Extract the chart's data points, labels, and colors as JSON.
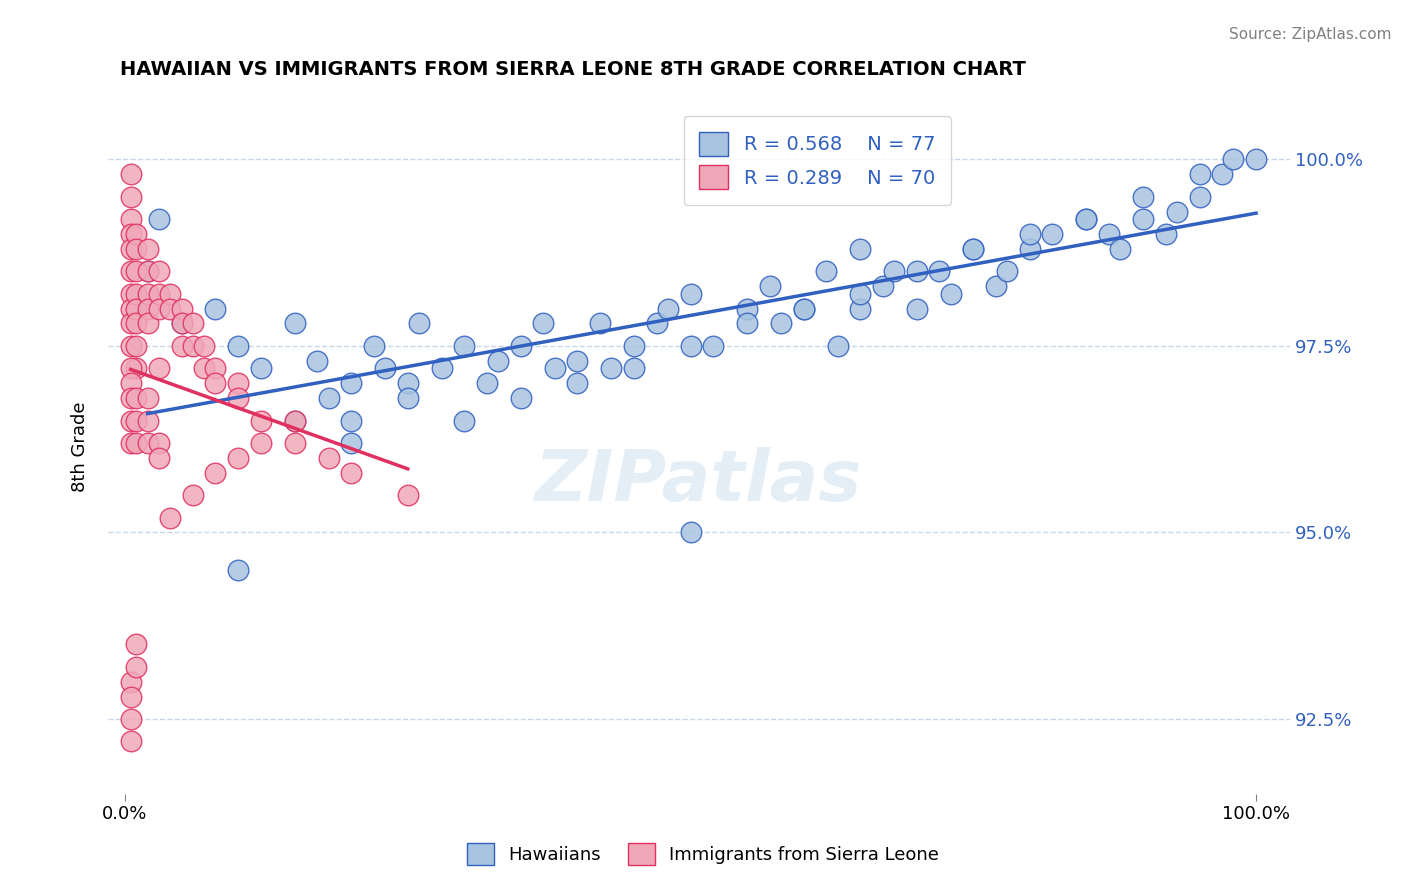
{
  "title": "HAWAIIAN VS IMMIGRANTS FROM SIERRA LEONE 8TH GRADE CORRELATION CHART",
  "source_text": "Source: ZipAtlas.com",
  "xlabel_bottom": "",
  "ylabel": "8th Grade",
  "x_tick_labels": [
    "0.0%",
    "100.0%"
  ],
  "y_tick_labels": [
    "92.5%",
    "95.0%",
    "97.5%",
    "100.0%"
  ],
  "y_min": 91.5,
  "y_max": 100.8,
  "x_min": -1.5,
  "x_max": 103,
  "legend_blue_label": "R = 0.568    N = 77",
  "legend_pink_label": "R = 0.289    N = 70",
  "bottom_legend_blue": "Hawaiians",
  "bottom_legend_pink": "Immigrants from Sierra Leone",
  "blue_color": "#a8c4e0",
  "pink_color": "#f0a8b8",
  "trend_blue_color": "#3060c0",
  "trend_pink_color": "#e03060",
  "watermark_text": "ZIPatlas",
  "blue_scatter_x": [
    2,
    3,
    5,
    8,
    10,
    12,
    15,
    17,
    18,
    20,
    22,
    23,
    25,
    26,
    28,
    30,
    32,
    33,
    35,
    37,
    38,
    40,
    42,
    43,
    45,
    47,
    48,
    50,
    52,
    55,
    57,
    58,
    60,
    62,
    63,
    65,
    67,
    68,
    70,
    72,
    73,
    75,
    77,
    78,
    80,
    82,
    85,
    87,
    88,
    90,
    92,
    93,
    95,
    97,
    98,
    100,
    15,
    20,
    25,
    30,
    35,
    40,
    45,
    50,
    55,
    60,
    65,
    70,
    75,
    80,
    85,
    90,
    95,
    10,
    50,
    65,
    20
  ],
  "blue_scatter_y": [
    98.5,
    99.2,
    97.8,
    98.0,
    97.5,
    97.2,
    97.8,
    97.3,
    96.8,
    97.0,
    97.5,
    97.2,
    97.0,
    97.8,
    97.2,
    97.5,
    97.0,
    97.3,
    97.5,
    97.8,
    97.2,
    97.3,
    97.8,
    97.2,
    97.5,
    97.8,
    98.0,
    98.2,
    97.5,
    98.0,
    98.3,
    97.8,
    98.0,
    98.5,
    97.5,
    98.0,
    98.3,
    98.5,
    98.0,
    98.5,
    98.2,
    98.8,
    98.3,
    98.5,
    98.8,
    99.0,
    99.2,
    99.0,
    98.8,
    99.2,
    99.0,
    99.3,
    99.5,
    99.8,
    100.0,
    100.0,
    96.5,
    96.2,
    96.8,
    96.5,
    96.8,
    97.0,
    97.2,
    97.5,
    97.8,
    98.0,
    98.2,
    98.5,
    98.8,
    99.0,
    99.2,
    99.5,
    99.8,
    94.5,
    95.0,
    98.8,
    96.5
  ],
  "pink_scatter_x": [
    0.5,
    0.5,
    0.5,
    0.5,
    0.5,
    0.5,
    0.5,
    0.5,
    0.5,
    0.5,
    1,
    1,
    1,
    1,
    1,
    1,
    1,
    1,
    2,
    2,
    2,
    2,
    2,
    3,
    3,
    3,
    4,
    4,
    5,
    5,
    5,
    6,
    6,
    7,
    7,
    8,
    8,
    10,
    10,
    12,
    15,
    18,
    20,
    25,
    0.5,
    0.5,
    0.5,
    0.5,
    0.5,
    1,
    1,
    1,
    2,
    2,
    3,
    3,
    0.5,
    0.5,
    0.5,
    0.5,
    1,
    1,
    4,
    6,
    8,
    10,
    12,
    15,
    3,
    2
  ],
  "pink_scatter_y": [
    99.8,
    99.5,
    99.2,
    99.0,
    98.8,
    98.5,
    98.2,
    98.0,
    97.8,
    97.5,
    99.0,
    98.8,
    98.5,
    98.2,
    98.0,
    97.8,
    97.5,
    97.2,
    98.8,
    98.5,
    98.2,
    98.0,
    97.8,
    98.5,
    98.2,
    98.0,
    98.2,
    98.0,
    98.0,
    97.8,
    97.5,
    97.8,
    97.5,
    97.5,
    97.2,
    97.2,
    97.0,
    97.0,
    96.8,
    96.5,
    96.2,
    96.0,
    95.8,
    95.5,
    97.2,
    97.0,
    96.8,
    96.5,
    96.2,
    96.8,
    96.5,
    96.2,
    96.5,
    96.2,
    96.2,
    96.0,
    93.0,
    92.8,
    92.5,
    92.2,
    93.5,
    93.2,
    95.2,
    95.5,
    95.8,
    96.0,
    96.2,
    96.5,
    97.2,
    96.8
  ]
}
